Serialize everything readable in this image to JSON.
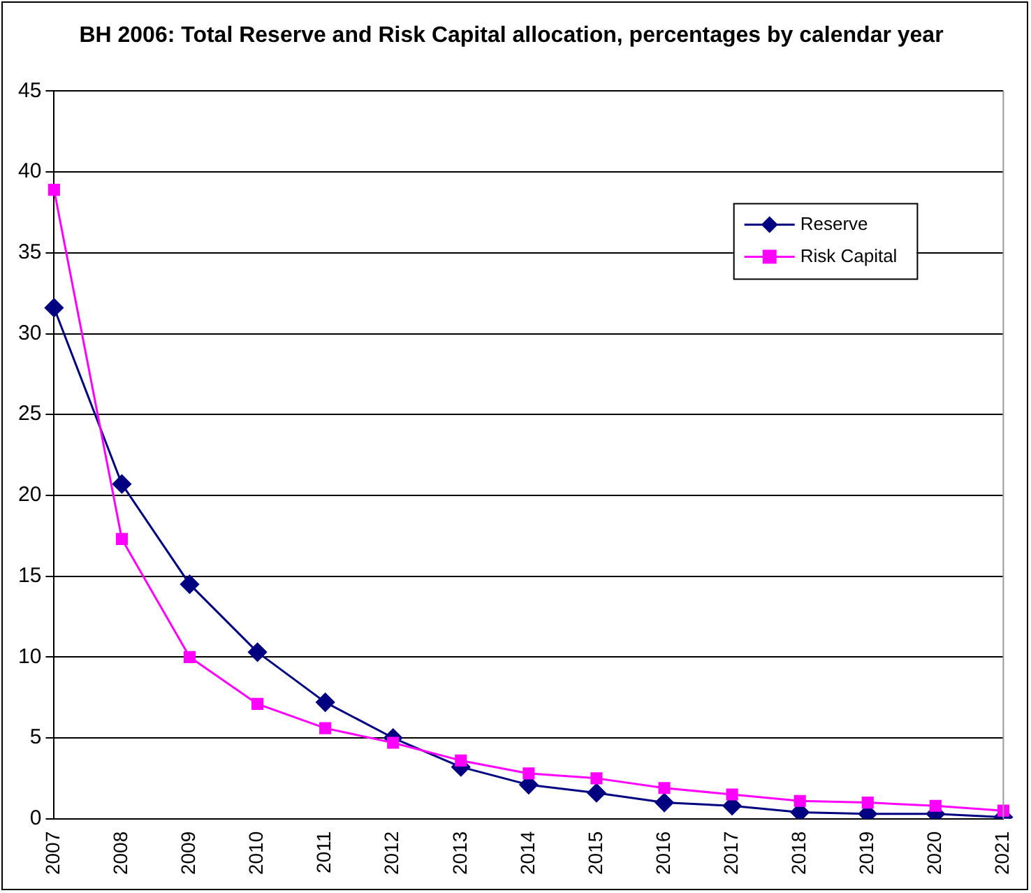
{
  "chart_data": {
    "type": "line",
    "title": "BH 2006: Total Reserve and Risk Capital allocation, percentages by calendar year",
    "categories": [
      "2007",
      "2008",
      "2009",
      "2010",
      "2011",
      "2012",
      "2013",
      "2014",
      "2015",
      "2016",
      "2017",
      "2018",
      "2019",
      "2020",
      "2021"
    ],
    "series": [
      {
        "name": "Reserve",
        "color": "#000080",
        "marker": "diamond",
        "values": [
          31.6,
          20.7,
          14.5,
          10.3,
          7.2,
          5.0,
          3.2,
          2.1,
          1.6,
          1.0,
          0.8,
          0.4,
          0.3,
          0.3,
          0.1
        ]
      },
      {
        "name": "Risk Capital",
        "color": "#ff00ff",
        "marker": "square",
        "values": [
          38.9,
          17.3,
          10.0,
          7.1,
          5.6,
          4.7,
          3.6,
          2.8,
          2.5,
          1.9,
          1.5,
          1.1,
          1.0,
          0.8,
          0.5
        ]
      }
    ],
    "ylim": [
      0,
      45
    ],
    "yticks": [
      0,
      5,
      10,
      15,
      20,
      25,
      30,
      35,
      40,
      45
    ],
    "grid": "y",
    "legend": "top right"
  }
}
